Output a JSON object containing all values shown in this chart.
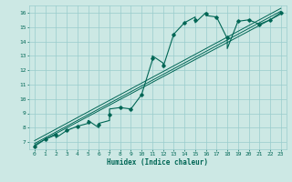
{
  "title": "",
  "xlabel": "Humidex (Indice chaleur)",
  "bg_color": "#cce8e4",
  "grid_color": "#99cccc",
  "line_color": "#006655",
  "xlim": [
    -0.5,
    23.5
  ],
  "ylim": [
    6.5,
    16.5
  ],
  "xticks": [
    0,
    1,
    2,
    3,
    4,
    5,
    6,
    7,
    8,
    9,
    10,
    11,
    12,
    13,
    14,
    15,
    16,
    17,
    18,
    19,
    20,
    21,
    22,
    23
  ],
  "yticks": [
    7,
    8,
    9,
    10,
    11,
    12,
    13,
    14,
    15,
    16
  ],
  "curve_x": [
    0,
    1,
    2,
    2,
    3,
    4,
    5,
    5,
    6,
    6,
    7,
    7,
    8,
    9,
    10,
    11,
    11,
    12,
    12,
    13,
    14,
    15,
    15,
    16,
    16,
    17,
    18,
    18,
    19,
    20,
    20,
    21,
    22,
    23
  ],
  "curve_y": [
    6.7,
    7.2,
    7.5,
    7.3,
    7.8,
    8.1,
    8.3,
    8.5,
    8.0,
    8.3,
    8.5,
    9.3,
    9.4,
    9.3,
    10.3,
    12.7,
    13.0,
    12.5,
    12.2,
    14.5,
    15.3,
    15.7,
    15.3,
    16.0,
    15.8,
    15.7,
    14.2,
    13.5,
    15.4,
    15.5,
    15.5,
    15.2,
    15.5,
    16.0
  ],
  "marker_x": [
    0,
    1,
    2,
    3,
    4,
    5,
    6,
    7,
    8,
    9,
    10,
    11,
    12,
    13,
    14,
    15,
    16,
    17,
    18,
    19,
    20,
    21,
    22,
    23
  ],
  "marker_y": [
    6.7,
    7.2,
    7.5,
    7.8,
    8.1,
    8.4,
    8.2,
    8.9,
    9.4,
    9.3,
    10.3,
    12.85,
    12.35,
    14.5,
    15.3,
    15.5,
    15.9,
    15.7,
    14.3,
    15.45,
    15.5,
    15.2,
    15.5,
    16.0
  ],
  "ref_line1": {
    "x": [
      0,
      23
    ],
    "y": [
      6.8,
      15.9
    ]
  },
  "ref_line2": {
    "x": [
      0,
      23
    ],
    "y": [
      6.9,
      16.1
    ]
  },
  "ref_line3": {
    "x": [
      0,
      23
    ],
    "y": [
      7.1,
      16.3
    ]
  }
}
